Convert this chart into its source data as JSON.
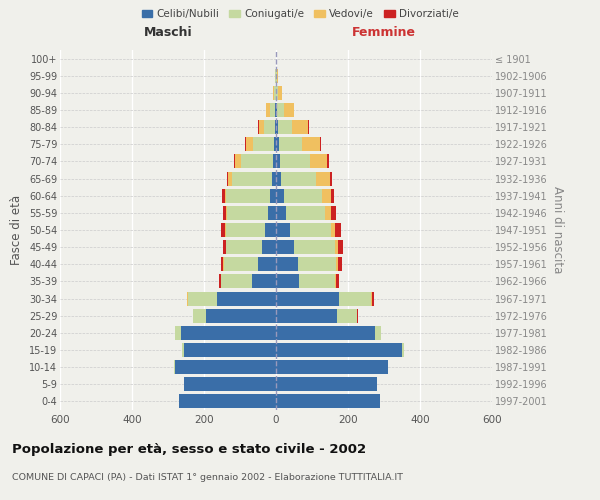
{
  "age_groups": [
    "0-4",
    "5-9",
    "10-14",
    "15-19",
    "20-24",
    "25-29",
    "30-34",
    "35-39",
    "40-44",
    "45-49",
    "50-54",
    "55-59",
    "60-64",
    "65-69",
    "70-74",
    "75-79",
    "80-84",
    "85-89",
    "90-94",
    "95-99",
    "100+"
  ],
  "birth_years": [
    "1997-2001",
    "1992-1996",
    "1987-1991",
    "1982-1986",
    "1977-1981",
    "1972-1976",
    "1967-1971",
    "1962-1966",
    "1957-1961",
    "1952-1956",
    "1947-1951",
    "1942-1946",
    "1937-1941",
    "1932-1936",
    "1927-1931",
    "1922-1926",
    "1917-1921",
    "1912-1916",
    "1907-1911",
    "1902-1906",
    "≤ 1901"
  ],
  "maschi": {
    "celibe": [
      270,
      255,
      280,
      255,
      265,
      195,
      165,
      68,
      50,
      38,
      30,
      22,
      18,
      12,
      8,
      5,
      3,
      2,
      1,
      1,
      0
    ],
    "coniugato": [
      0,
      0,
      2,
      5,
      15,
      35,
      80,
      85,
      95,
      100,
      110,
      115,
      120,
      110,
      90,
      60,
      30,
      15,
      5,
      2,
      0
    ],
    "vedovo": [
      0,
      0,
      0,
      0,
      0,
      0,
      1,
      0,
      1,
      1,
      2,
      3,
      5,
      10,
      15,
      18,
      15,
      10,
      3,
      1,
      0
    ],
    "divorziato": [
      0,
      0,
      0,
      0,
      0,
      1,
      2,
      5,
      8,
      9,
      10,
      8,
      7,
      5,
      3,
      2,
      1,
      0,
      0,
      0,
      0
    ]
  },
  "femmine": {
    "nubile": [
      290,
      280,
      310,
      350,
      275,
      170,
      175,
      65,
      60,
      50,
      38,
      28,
      22,
      15,
      10,
      8,
      5,
      3,
      1,
      1,
      0
    ],
    "coniugata": [
      0,
      0,
      2,
      5,
      18,
      55,
      90,
      100,
      108,
      115,
      115,
      108,
      105,
      95,
      85,
      65,
      40,
      20,
      5,
      1,
      0
    ],
    "vedova": [
      0,
      0,
      0,
      0,
      0,
      1,
      2,
      3,
      5,
      8,
      12,
      18,
      25,
      40,
      48,
      50,
      45,
      28,
      12,
      3,
      0
    ],
    "divorziata": [
      0,
      0,
      0,
      0,
      0,
      2,
      5,
      8,
      10,
      12,
      15,
      12,
      10,
      6,
      4,
      2,
      1,
      0,
      0,
      0,
      0
    ]
  },
  "colors": {
    "celibe": "#3a6ea8",
    "coniugato": "#c5d9a0",
    "vedovo": "#f0c060",
    "divorziato": "#cc2222"
  },
  "xlim": 600,
  "title": "Popolazione per età, sesso e stato civile - 2002",
  "subtitle": "COMUNE DI CAPACI (PA) - Dati ISTAT 1° gennaio 2002 - Elaborazione TUTTITALIA.IT",
  "ylabel": "Fasce di età",
  "ylabel_right": "Anni di nascita",
  "background_color": "#f0f0eb"
}
